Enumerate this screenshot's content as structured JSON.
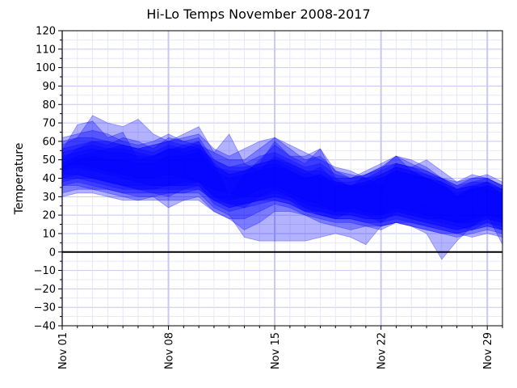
{
  "chart_data": {
    "type": "area",
    "title": "Hi-Lo Temps November 2008-2017",
    "xlabel": "",
    "ylabel": "Temperature",
    "ylim": [
      -40,
      120
    ],
    "xlim": [
      "Nov 01",
      "Nov 30"
    ],
    "y_ticks": [
      -40,
      -30,
      -20,
      -10,
      0,
      10,
      20,
      30,
      40,
      50,
      60,
      70,
      80,
      90,
      100,
      110,
      120
    ],
    "x_ticks": [
      "Nov 01",
      "Nov 08",
      "Nov 15",
      "Nov 22",
      "Nov 29"
    ],
    "x": [
      "Nov 01",
      "Nov 02",
      "Nov 03",
      "Nov 04",
      "Nov 05",
      "Nov 06",
      "Nov 07",
      "Nov 08",
      "Nov 09",
      "Nov 10",
      "Nov 11",
      "Nov 12",
      "Nov 13",
      "Nov 14",
      "Nov 15",
      "Nov 16",
      "Nov 17",
      "Nov 18",
      "Nov 19",
      "Nov 20",
      "Nov 21",
      "Nov 22",
      "Nov 23",
      "Nov 24",
      "Nov 25",
      "Nov 26",
      "Nov 27",
      "Nov 28",
      "Nov 29",
      "Nov 30"
    ],
    "grid": true,
    "zero_line": true,
    "fill_color": "#0000ff",
    "series": [
      {
        "high": [
          55,
          69,
          71,
          62,
          65,
          50,
          52,
          55,
          58,
          60,
          48,
          30,
          42,
          50,
          58,
          52,
          48,
          56,
          40,
          35,
          42,
          45,
          52,
          44,
          40,
          38,
          30,
          35,
          38,
          30
        ],
        "low": [
          40,
          42,
          40,
          38,
          36,
          34,
          32,
          30,
          34,
          36,
          26,
          22,
          24,
          30,
          34,
          30,
          24,
          20,
          18,
          22,
          20,
          16,
          22,
          20,
          18,
          16,
          14,
          12,
          16,
          12
        ]
      },
      {
        "high": [
          58,
          62,
          74,
          70,
          68,
          72,
          64,
          60,
          62,
          64,
          56,
          52,
          56,
          60,
          62,
          58,
          54,
          50,
          46,
          44,
          40,
          36,
          48,
          46,
          50,
          44,
          38,
          42,
          40,
          36
        ],
        "low": [
          44,
          46,
          44,
          42,
          40,
          38,
          36,
          36,
          38,
          38,
          30,
          28,
          30,
          34,
          36,
          32,
          28,
          26,
          22,
          24,
          22,
          20,
          24,
          22,
          20,
          18,
          16,
          18,
          20,
          18
        ]
      },
      {
        "high": [
          50,
          56,
          60,
          58,
          62,
          60,
          56,
          62,
          60,
          62,
          50,
          46,
          48,
          52,
          54,
          50,
          46,
          48,
          42,
          40,
          44,
          48,
          52,
          50,
          46,
          40,
          36,
          40,
          42,
          38
        ],
        "low": [
          36,
          38,
          36,
          34,
          32,
          30,
          30,
          32,
          32,
          34,
          28,
          24,
          26,
          28,
          30,
          28,
          22,
          22,
          20,
          20,
          18,
          18,
          20,
          18,
          16,
          14,
          12,
          14,
          18,
          16
        ]
      },
      {
        "high": [
          62,
          64,
          66,
          64,
          60,
          58,
          60,
          64,
          60,
          58,
          54,
          64,
          48,
          44,
          52,
          48,
          44,
          40,
          38,
          36,
          38,
          40,
          44,
          42,
          40,
          38,
          34,
          36,
          34,
          32
        ],
        "low": [
          46,
          48,
          46,
          44,
          42,
          40,
          40,
          42,
          40,
          38,
          34,
          32,
          30,
          30,
          32,
          30,
          26,
          24,
          22,
          22,
          20,
          20,
          22,
          20,
          18,
          18,
          16,
          16,
          18,
          16
        ]
      },
      {
        "high": [
          48,
          52,
          54,
          56,
          56,
          54,
          52,
          56,
          56,
          58,
          48,
          42,
          44,
          48,
          50,
          46,
          42,
          46,
          38,
          38,
          40,
          44,
          48,
          46,
          44,
          40,
          38,
          40,
          40,
          36
        ],
        "low": [
          32,
          34,
          34,
          32,
          30,
          28,
          30,
          24,
          28,
          30,
          22,
          18,
          12,
          16,
          22,
          22,
          20,
          16,
          14,
          12,
          14,
          12,
          16,
          14,
          12,
          10,
          10,
          8,
          10,
          8
        ]
      },
      {
        "high": [
          54,
          56,
          58,
          56,
          58,
          56,
          54,
          58,
          56,
          60,
          46,
          44,
          44,
          48,
          60,
          52,
          52,
          56,
          44,
          40,
          42,
          46,
          52,
          48,
          44,
          40,
          34,
          38,
          38,
          34
        ],
        "low": [
          38,
          40,
          40,
          38,
          36,
          34,
          34,
          36,
          36,
          36,
          28,
          24,
          26,
          28,
          28,
          26,
          22,
          20,
          18,
          18,
          16,
          14,
          16,
          16,
          14,
          12,
          10,
          12,
          14,
          12
        ]
      },
      {
        "high": [
          46,
          50,
          52,
          50,
          50,
          48,
          48,
          52,
          52,
          54,
          44,
          40,
          42,
          44,
          46,
          44,
          40,
          42,
          36,
          36,
          36,
          40,
          44,
          42,
          40,
          36,
          32,
          34,
          36,
          32
        ],
        "low": [
          30,
          32,
          32,
          30,
          28,
          28,
          28,
          28,
          28,
          28,
          22,
          18,
          18,
          22,
          26,
          24,
          20,
          18,
          16,
          16,
          14,
          14,
          16,
          14,
          12,
          10,
          8,
          10,
          12,
          10
        ]
      },
      {
        "high": [
          56,
          58,
          60,
          60,
          58,
          56,
          58,
          60,
          58,
          56,
          50,
          46,
          46,
          48,
          50,
          48,
          44,
          44,
          40,
          40,
          42,
          46,
          48,
          46,
          42,
          40,
          36,
          38,
          40,
          36
        ],
        "low": [
          40,
          40,
          38,
          36,
          34,
          34,
          34,
          34,
          34,
          34,
          28,
          26,
          26,
          28,
          30,
          28,
          24,
          22,
          20,
          20,
          18,
          18,
          20,
          18,
          16,
          14,
          12,
          14,
          16,
          14
        ]
      },
      {
        "high": [
          60,
          62,
          62,
          60,
          58,
          56,
          58,
          60,
          64,
          68,
          54,
          50,
          50,
          56,
          62,
          56,
          50,
          52,
          44,
          42,
          40,
          42,
          46,
          44,
          40,
          36,
          30,
          34,
          36,
          34
        ],
        "low": [
          42,
          42,
          40,
          38,
          36,
          36,
          36,
          36,
          36,
          38,
          30,
          26,
          24,
          26,
          28,
          26,
          22,
          20,
          18,
          18,
          16,
          16,
          18,
          16,
          14,
          12,
          10,
          12,
          14,
          12
        ]
      },
      {
        "high": [
          52,
          54,
          56,
          54,
          54,
          52,
          52,
          56,
          54,
          56,
          46,
          42,
          44,
          46,
          48,
          44,
          40,
          42,
          38,
          36,
          38,
          42,
          46,
          44,
          42,
          38,
          34,
          36,
          38,
          34
        ],
        "low": [
          36,
          36,
          34,
          34,
          32,
          32,
          32,
          32,
          32,
          32,
          24,
          20,
          8,
          6,
          6,
          6,
          6,
          8,
          10,
          8,
          4,
          14,
          16,
          14,
          10,
          -4,
          6,
          14,
          20,
          4
        ]
      }
    ]
  }
}
